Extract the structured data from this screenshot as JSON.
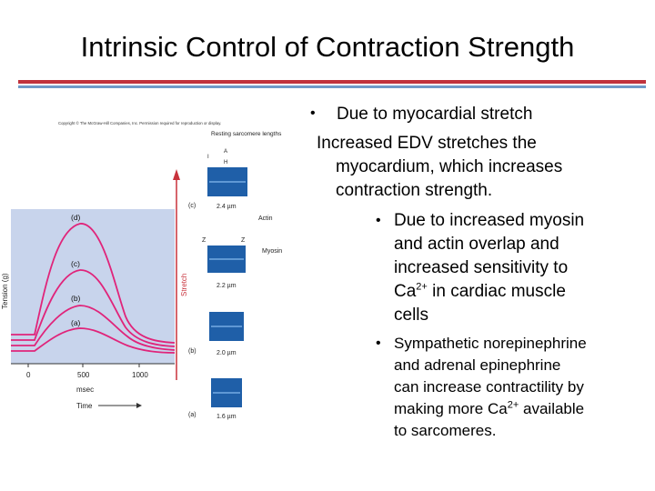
{
  "slide": {
    "title": "Intrinsic Control of Contraction Strength",
    "bullet1": "Due to myocardial stretch",
    "sub_lines": [
      "Increased EDV stretches the",
      "myocardium, which increases",
      "contraction strength."
    ],
    "bullet2_lines": [
      "Due to increased myosin",
      "and actin overlap and",
      "increased sensitivity to",
      "in cardiac muscle",
      "cells"
    ],
    "ca_prefix": "Ca",
    "ca_sup": "2+",
    "bullet3_lines": [
      "Sympathetic norepinephrine",
      "and adrenal epinephrine",
      "can increase contractility by",
      "making more",
      "available",
      "to sarcomeres."
    ],
    "bullet_glyph": "•"
  },
  "figure": {
    "copyright": "Copyright © The McGraw-Hill Companies, Inc. Permission required for reproduction or display.",
    "resting_label": "Resting sarcomere lengths",
    "y_axis_label": "Tension (g)",
    "x_axis_label": "msec",
    "time_label": "Time",
    "stretch_label": "Stretch",
    "x_ticks": [
      "0",
      "500",
      "1000"
    ],
    "curve_labels": [
      "(d)",
      "(c)",
      "(b)",
      "(a)"
    ],
    "sarcomere_labels": [
      "(c)",
      "(b)",
      "(a)"
    ],
    "lengths": [
      "2.4 µm",
      "2.2 µm",
      "2.0 µm",
      "1.6 µm"
    ],
    "actin_label": "Actin",
    "myosin_label": "Myosin",
    "band_labels": {
      "A": "A",
      "H": "H",
      "I": "I",
      "Z": "Z"
    }
  },
  "colors": {
    "title_rule_red": "#c0323c",
    "title_rule_blue": "#6f9ac8",
    "plot_bg": "#c8d4ec",
    "curve": "#e0247a",
    "stretch_arrow": "#c8323c"
  }
}
